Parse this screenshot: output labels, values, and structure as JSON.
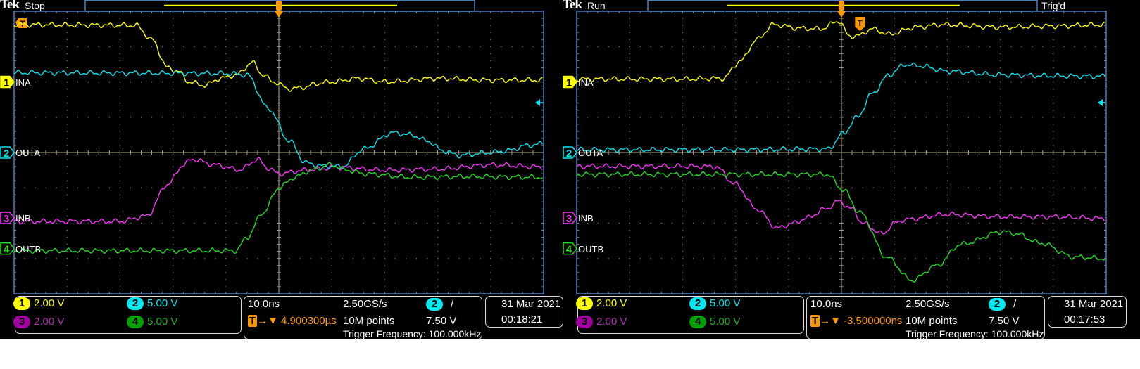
{
  "colors": {
    "ch1": "#ffff00",
    "ch2": "#00e8f0",
    "ch3": "#ff33ff",
    "ch4": "#22dd22",
    "ch3_badge": "#a000a0",
    "ch4_badge": "#00a000",
    "ch3_text": "#b030b0",
    "ch4_text": "#20b020",
    "trigger": "#ff9900",
    "grid": "#8a8a8a",
    "center": "#b0a890",
    "frame": "#4a7fc0"
  },
  "scopes": [
    {
      "brand": "Tek",
      "state": "Stop",
      "trig_status": "",
      "channel_labels": [
        "INA",
        "OUTA",
        "INB",
        "OUTB"
      ],
      "channels": [
        {
          "num": "1",
          "scale": "2.00 V"
        },
        {
          "num": "2",
          "scale": "5.00 V"
        },
        {
          "num": "3",
          "scale": "2.00 V"
        },
        {
          "num": "4",
          "scale": "5.00 V"
        }
      ],
      "timebase": "10.0ns",
      "sample_rate": "2.50GS/s",
      "trigger_position": "4.900300µs",
      "record_length": "10M points",
      "trigger_source": "2",
      "trigger_slope": "/",
      "trigger_level": "7.50 V",
      "trigger_frequency": "Trigger Frequency: 100.000kHz",
      "date": "31 Mar  2021",
      "time": "00:18:21"
    },
    {
      "brand": "Tek",
      "state": "Run",
      "trig_status": "Trig'd",
      "channel_labels": [
        "INA",
        "OUTA",
        "INB",
        "OUTB"
      ],
      "channels": [
        {
          "num": "1",
          "scale": "2.00 V"
        },
        {
          "num": "2",
          "scale": "5.00 V"
        },
        {
          "num": "3",
          "scale": "2.00 V"
        },
        {
          "num": "4",
          "scale": "5.00 V"
        }
      ],
      "timebase": "10.0ns",
      "sample_rate": "2.50GS/s",
      "trigger_position": "-3.500000ns",
      "record_length": "10M points",
      "trigger_source": "2",
      "trigger_slope": "/",
      "trigger_level": "7.50 V",
      "trigger_frequency": "Trigger Frequency: 100.000kHz",
      "date": "31 Mar  2021",
      "time": "00:17:53"
    }
  ],
  "chart_data": [
    {
      "type": "line",
      "x_unit": "ns",
      "y_unit": "div",
      "xlim": [
        -50,
        50
      ],
      "ylim": [
        -4,
        4
      ],
      "grid": true,
      "series": [
        {
          "name": "INA",
          "channel": "1",
          "points": [
            [
              -50,
              3.62
            ],
            [
              -27,
              3.6
            ],
            [
              -24,
              3.2
            ],
            [
              -21,
              2.4
            ],
            [
              -19,
              2.3
            ],
            [
              -17,
              2.0
            ],
            [
              -14,
              1.9
            ],
            [
              -11,
              2.1
            ],
            [
              -8,
              2.2
            ],
            [
              -5,
              2.55
            ],
            [
              -3,
              2.2
            ],
            [
              -1,
              2.0
            ],
            [
              2,
              1.8
            ],
            [
              5,
              1.85
            ],
            [
              7,
              1.95
            ],
            [
              10,
              2.0
            ],
            [
              15,
              2.1
            ],
            [
              20,
              2.0
            ],
            [
              30,
              2.1
            ],
            [
              40,
              2.05
            ],
            [
              50,
              2.05
            ]
          ]
        },
        {
          "name": "OUTA",
          "channel": "2",
          "points": [
            [
              -50,
              2.26
            ],
            [
              -30,
              2.25
            ],
            [
              -10,
              2.24
            ],
            [
              -6,
              2.2
            ],
            [
              -2,
              1.25
            ],
            [
              2,
              0.33
            ],
            [
              5,
              -0.29
            ],
            [
              8,
              -0.38
            ],
            [
              12,
              -0.4
            ],
            [
              16,
              0.1
            ],
            [
              21.5,
              0.56
            ],
            [
              25,
              0.5
            ],
            [
              28,
              0.33
            ],
            [
              31,
              0.05
            ],
            [
              34,
              -0.08
            ],
            [
              40,
              0.0
            ],
            [
              43,
              0.05
            ],
            [
              47,
              0.2
            ],
            [
              50,
              0.25
            ]
          ]
        },
        {
          "name": "INB",
          "channel": "3",
          "points": [
            [
              -50,
              -1.95
            ],
            [
              -30,
              -1.95
            ],
            [
              -25,
              -1.8
            ],
            [
              -21,
              -0.9
            ],
            [
              -18,
              -0.35
            ],
            [
              -16.4,
              -0.19
            ],
            [
              -12,
              -0.35
            ],
            [
              -7.4,
              -0.49
            ],
            [
              -4,
              -0.2
            ],
            [
              -2,
              -0.45
            ],
            [
              0,
              -0.6
            ],
            [
              5,
              -0.5
            ],
            [
              11,
              -0.42
            ],
            [
              20,
              -0.5
            ],
            [
              30,
              -0.47
            ],
            [
              40,
              -0.35
            ],
            [
              50,
              -0.41
            ]
          ]
        },
        {
          "name": "OUTB",
          "channel": "4",
          "points": [
            [
              -50,
              -2.78
            ],
            [
              -20,
              -2.78
            ],
            [
              -8.1,
              -2.78
            ],
            [
              -6,
              -2.4
            ],
            [
              -3,
              -1.7
            ],
            [
              0,
              -1.0
            ],
            [
              3,
              -0.7
            ],
            [
              6.3,
              -0.49
            ],
            [
              9.8,
              -0.35
            ],
            [
              13,
              -0.5
            ],
            [
              16,
              -0.6
            ],
            [
              25,
              -0.7
            ],
            [
              35,
              -0.68
            ],
            [
              50,
              -0.7
            ]
          ]
        }
      ]
    },
    {
      "type": "line",
      "x_unit": "ns",
      "y_unit": "div",
      "xlim": [
        -50,
        50
      ],
      "ylim": [
        -4,
        4
      ],
      "grid": true,
      "series": [
        {
          "name": "INA",
          "channel": "1",
          "points": [
            [
              -50,
              2.08
            ],
            [
              -30,
              2.08
            ],
            [
              -22.4,
              2.1
            ],
            [
              -19,
              2.6
            ],
            [
              -16,
              3.2
            ],
            [
              -12.8,
              3.62
            ],
            [
              -8,
              3.52
            ],
            [
              -4,
              3.5
            ],
            [
              -0.5,
              3.72
            ],
            [
              1.5,
              3.3
            ],
            [
              3,
              3.3
            ],
            [
              5.8,
              3.5
            ],
            [
              9,
              3.35
            ],
            [
              14,
              3.55
            ],
            [
              19,
              3.62
            ],
            [
              30,
              3.55
            ],
            [
              40,
              3.58
            ],
            [
              50,
              3.62
            ]
          ]
        },
        {
          "name": "OUTA",
          "channel": "2",
          "points": [
            [
              -45,
              0.08
            ],
            [
              -20,
              0.08
            ],
            [
              -2.5,
              0.1
            ],
            [
              0.3,
              0.53
            ],
            [
              3,
              1.0
            ],
            [
              5.8,
              1.67
            ],
            [
              9,
              2.2
            ],
            [
              12,
              2.49
            ],
            [
              15,
              2.45
            ],
            [
              20,
              2.3
            ],
            [
              30,
              2.2
            ],
            [
              40,
              2.17
            ],
            [
              50,
              2.16
            ]
          ]
        },
        {
          "name": "INB",
          "channel": "3",
          "points": [
            [
              -50,
              -0.39
            ],
            [
              -30,
              -0.39
            ],
            [
              -23.8,
              -0.4
            ],
            [
              -20,
              -0.9
            ],
            [
              -16,
              -1.6
            ],
            [
              -12.1,
              -2.14
            ],
            [
              -9,
              -2.0
            ],
            [
              -6.5,
              -1.85
            ],
            [
              -3,
              -1.6
            ],
            [
              -0.5,
              -1.38
            ],
            [
              2,
              -1.6
            ],
            [
              4,
              -2.0
            ],
            [
              7.8,
              -2.3
            ],
            [
              10,
              -2.0
            ],
            [
              12,
              -1.9
            ],
            [
              20,
              -1.75
            ],
            [
              30,
              -1.82
            ],
            [
              40,
              -1.82
            ],
            [
              50,
              -1.87
            ]
          ]
        },
        {
          "name": "OUTB",
          "channel": "4",
          "points": [
            [
              -50,
              -0.62
            ],
            [
              -30,
              -0.62
            ],
            [
              -2.7,
              -0.62
            ],
            [
              0.3,
              -1.05
            ],
            [
              3.5,
              -1.7
            ],
            [
              8.5,
              -2.96
            ],
            [
              13.3,
              -3.62
            ],
            [
              18,
              -3.2
            ],
            [
              22.5,
              -2.6
            ],
            [
              30.5,
              -2.24
            ],
            [
              33,
              -2.3
            ],
            [
              37.5,
              -2.56
            ],
            [
              44,
              -2.96
            ],
            [
              50,
              -3.0
            ]
          ]
        }
      ]
    }
  ]
}
